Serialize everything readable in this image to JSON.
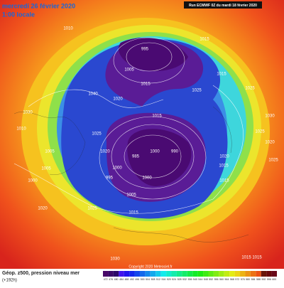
{
  "header": {
    "date": "mercredi 26 février 2020",
    "time": "1:00 locale",
    "run": "Run ECMWF 0Z du mardi 18 février 2020"
  },
  "footer": {
    "title": "Géop. z500, pression niveau mer",
    "lead": "(+192h)",
    "copyright": "Copyright 2020 Meteociel.fr"
  },
  "map": {
    "pressure_labels": [
      "1010",
      "1015",
      "995",
      "1005",
      "1015",
      "1020",
      "1040",
      "1025",
      "1015",
      "1025",
      "1030",
      "1015",
      "1030",
      "1025",
      "1025",
      "1010",
      "1005",
      "1000",
      "990",
      "985",
      "1020",
      "1020",
      "1015",
      "1005",
      "1000",
      "995",
      "1000",
      "1000",
      "1005",
      "1015",
      "1020",
      "1025",
      "1015",
      "1030",
      "1015",
      "1015",
      "1020",
      "1025"
    ]
  },
  "legend": {
    "scale": [
      472,
      476,
      480,
      484,
      488,
      492,
      496,
      500,
      504,
      508,
      512,
      516,
      520,
      524,
      528,
      532,
      536,
      540,
      544,
      548,
      552,
      556,
      560,
      564,
      568,
      572,
      576,
      580,
      584,
      588,
      592,
      596,
      600
    ]
  }
}
